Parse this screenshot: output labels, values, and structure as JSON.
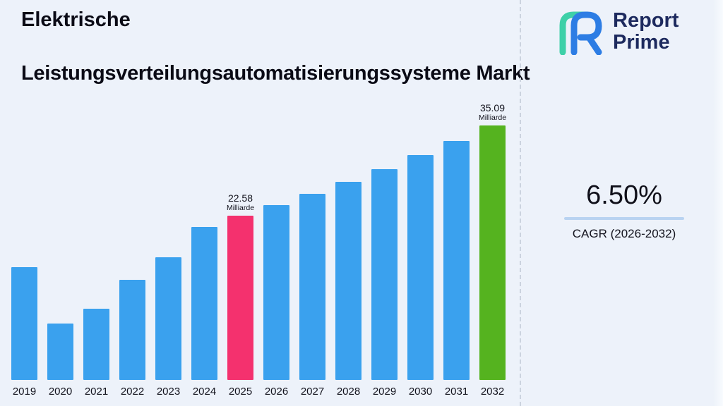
{
  "page": {
    "background": "#edf2fa"
  },
  "header": {
    "title_line1": "Elektrische",
    "title_line2": "Leistungsverteilungsautomatisierungssysteme Markt"
  },
  "logo": {
    "line1": "Report",
    "line2": "Prime",
    "navy": "#1d2a5e",
    "teal": "#3ed0a8",
    "blue": "#2d7de4"
  },
  "cagr": {
    "value": "6.50%",
    "label": "CAGR (2026-2032)",
    "underline_color": "#b9d3f1"
  },
  "chart_data": {
    "type": "bar",
    "title": "Elektrische Leistungsverteilungsautomatisierungssysteme Markt",
    "categories": [
      "2019",
      "2020",
      "2021",
      "2022",
      "2023",
      "2024",
      "2025",
      "2026",
      "2027",
      "2028",
      "2029",
      "2030",
      "2031",
      "2032"
    ],
    "values": [
      15.5,
      7.8,
      9.8,
      13.8,
      16.9,
      21.1,
      22.58,
      24.05,
      25.61,
      27.27,
      29.05,
      30.93,
      32.94,
      35.09
    ],
    "unit": "Milliarde",
    "bar_color": "#3aa1ee",
    "highlights": [
      {
        "category": "2025",
        "color": "#f4316e"
      },
      {
        "category": "2032",
        "color": "#55b31f"
      }
    ],
    "annotations": [
      {
        "category": "2025",
        "value": "22.58",
        "unit": "Milliarde"
      },
      {
        "category": "2032",
        "value": "35.09",
        "unit": "Milliarde"
      }
    ],
    "xlabel": "",
    "ylabel": "",
    "ylim": [
      0,
      37
    ],
    "grid": false,
    "legend": false
  }
}
